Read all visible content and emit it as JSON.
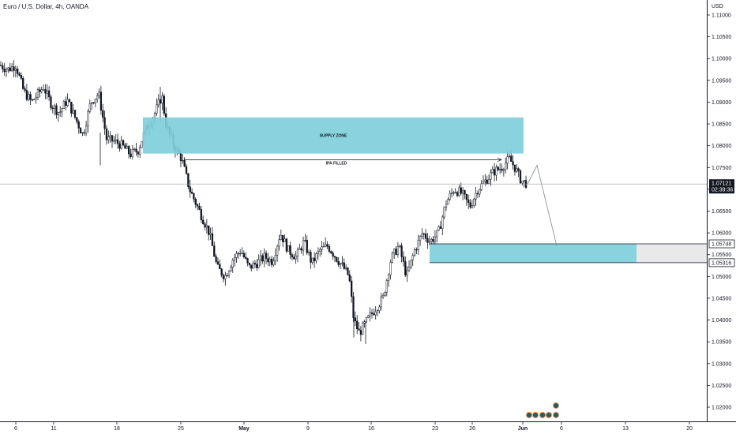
{
  "header": {
    "title": "Euro / U.S. Dollar, 4h, OANDA"
  },
  "price_axis": {
    "currency": "USD",
    "ticks": [
      "1.11000",
      "1.10500",
      "1.10000",
      "1.09500",
      "1.09000",
      "1.08500",
      "1.08000",
      "1.07500",
      "1.07000",
      "1.06500",
      "1.06000",
      "1.05500",
      "1.05000",
      "1.04500",
      "1.04000",
      "1.03500",
      "1.03000",
      "1.02500",
      "1.02000"
    ],
    "current_price": "1.07121",
    "countdown": "02:39:36",
    "level_upper": "1.05748",
    "level_lower": "1.05316"
  },
  "time_axis": {
    "labels": [
      "6",
      "11",
      "18",
      "25",
      "May",
      "9",
      "16",
      "23",
      "26",
      "Jun",
      "6",
      "13",
      "20"
    ]
  },
  "annotations": {
    "supply_zone": "SUPPLY ZONE",
    "ipa_filled": "IPA FILLED"
  },
  "colors": {
    "up": "#131722",
    "down": "#131722",
    "zone": "#7fcfdc",
    "grid_line": "#b2b5be",
    "axis_border": "#131722",
    "tag_dark": "#131722"
  },
  "chart_data": {
    "type": "candlestick",
    "title": "Euro / U.S. Dollar, 4h, OANDA",
    "ylim": [
      1.016,
      1.113
    ],
    "y_ticks": [
      1.11,
      1.105,
      1.1,
      1.095,
      1.09,
      1.085,
      1.08,
      1.075,
      1.07,
      1.065,
      1.06,
      1.055,
      1.05,
      1.045,
      1.04,
      1.035,
      1.03,
      1.025,
      1.02
    ],
    "x_labels": [
      "6",
      "11",
      "18",
      "25",
      "May",
      "9",
      "16",
      "23",
      "26",
      "Jun",
      "6",
      "13",
      "20"
    ],
    "close_path": [
      [
        0,
        1.0985
      ],
      [
        10,
        1.0975
      ],
      [
        20,
        1.0985
      ],
      [
        30,
        1.0925
      ],
      [
        40,
        1.09
      ],
      [
        55,
        1.0935
      ],
      [
        65,
        1.0895
      ],
      [
        75,
        1.0875
      ],
      [
        85,
        1.0905
      ],
      [
        95,
        1.0865
      ],
      [
        105,
        1.0825
      ],
      [
        115,
        1.09
      ],
      [
        125,
        1.092
      ],
      [
        135,
        1.0815
      ],
      [
        145,
        1.081
      ],
      [
        155,
        1.08
      ],
      [
        165,
        1.078
      ],
      [
        175,
        1.079
      ],
      [
        185,
        1.084
      ],
      [
        195,
        1.087
      ],
      [
        205,
        1.0915
      ],
      [
        210,
        1.085
      ],
      [
        220,
        1.08
      ],
      [
        230,
        1.077
      ],
      [
        240,
        1.07
      ],
      [
        255,
        1.064
      ],
      [
        265,
        1.06
      ],
      [
        275,
        1.052
      ],
      [
        285,
        1.05
      ],
      [
        295,
        1.054
      ],
      [
        305,
        1.056
      ],
      [
        315,
        1.052
      ],
      [
        325,
        1.053
      ],
      [
        335,
        1.0545
      ],
      [
        345,
        1.0535
      ],
      [
        355,
        1.06
      ],
      [
        365,
        1.056
      ],
      [
        375,
        1.0545
      ],
      [
        385,
        1.058
      ],
      [
        395,
        1.053
      ],
      [
        405,
        1.056
      ],
      [
        415,
        1.057
      ],
      [
        425,
        1.0545
      ],
      [
        435,
        1.052
      ],
      [
        442,
        1.05
      ],
      [
        448,
        1.04
      ],
      [
        455,
        1.037
      ],
      [
        465,
        1.04
      ],
      [
        475,
        1.0425
      ],
      [
        485,
        1.045
      ],
      [
        495,
        1.054
      ],
      [
        505,
        1.057
      ],
      [
        515,
        1.05
      ],
      [
        525,
        1.056
      ],
      [
        535,
        1.06
      ],
      [
        545,
        1.058
      ],
      [
        555,
        1.06
      ],
      [
        565,
        1.067
      ],
      [
        575,
        1.07
      ],
      [
        585,
        1.069
      ],
      [
        595,
        1.066
      ],
      [
        605,
        1.07
      ],
      [
        615,
        1.072
      ],
      [
        625,
        1.074
      ],
      [
        635,
        1.075
      ],
      [
        645,
        1.077
      ],
      [
        652,
        1.075
      ],
      [
        660,
        1.072
      ],
      [
        668,
        1.0712
      ]
    ],
    "supply_zone": {
      "top": 1.0865,
      "bottom": 1.0782
    },
    "demand_zone": {
      "top": 1.05748,
      "bottom": 1.05316
    },
    "ipa_line": 1.0768,
    "current_price": 1.07121,
    "projection": [
      [
        668,
        1.0712
      ],
      [
        680,
        1.0755
      ],
      [
        705,
        1.057
      ]
    ],
    "grid": false,
    "legend": "none"
  }
}
